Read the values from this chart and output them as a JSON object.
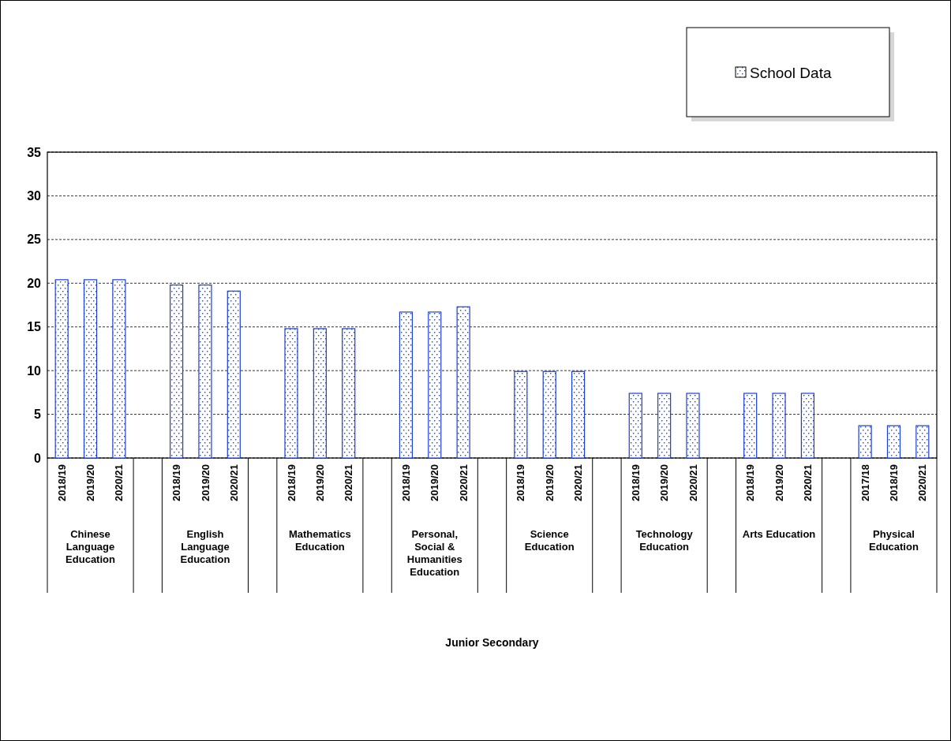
{
  "chart_data": {
    "type": "bar",
    "categories": [
      "2018/19",
      "2019/20",
      "2020/21",
      null,
      "2018/19",
      "2019/20",
      "2020/21",
      null,
      "2018/19",
      "2019/20",
      "2020/21",
      null,
      "2018/19",
      "2019/20",
      "2020/21",
      null,
      "2018/19",
      "2019/20",
      "2020/21",
      null,
      "2018/19",
      "2019/20",
      "2020/21",
      null,
      "2018/19",
      "2019/20",
      "2020/21",
      null,
      "2017/18",
      "2018/19",
      "2020/21"
    ],
    "series": [
      {
        "name": "School Data",
        "color": "#1a3fd6",
        "values": [
          20.4,
          20.4,
          20.4,
          null,
          19.8,
          19.8,
          19.1,
          null,
          14.8,
          14.8,
          14.8,
          null,
          16.7,
          16.7,
          17.3,
          null,
          9.9,
          9.9,
          9.9,
          null,
          7.4,
          7.4,
          7.4,
          null,
          7.4,
          7.4,
          7.4,
          null,
          3.7,
          3.7,
          3.7
        ]
      }
    ],
    "annotations": [
      "Chinese Language Education",
      "English Language Education",
      "Mathematics Education",
      "Personal, Social & Humanities Education",
      "Science Education",
      "Technology Education",
      "Arts Education",
      "Physical Education",
      "Junior Secondary"
    ],
    "ylim": [
      0,
      35
    ],
    "yticks": [
      0,
      5,
      10,
      15,
      20,
      25,
      30,
      35
    ],
    "grid": "y",
    "legend": "top right"
  }
}
